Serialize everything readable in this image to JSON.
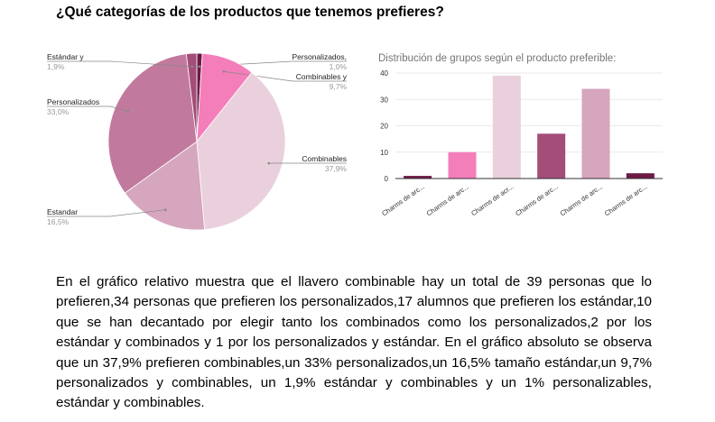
{
  "question": "¿Qué categorías de los productos que tenemos prefieres?",
  "chart_data": [
    {
      "type": "pie",
      "title": "",
      "slices": [
        {
          "label": "Personalizados,",
          "value": 1.0,
          "pct_label": "1,0%",
          "color": "#6d1a45"
        },
        {
          "label": "Combinables y",
          "value": 9.7,
          "pct_label": "9,7%",
          "color": "#f47eba"
        },
        {
          "label": "Combinables",
          "value": 37.9,
          "pct_label": "37,9%",
          "color": "#ead0dc"
        },
        {
          "label": "Estandar",
          "value": 16.5,
          "pct_label": "16,5%",
          "color": "#d6a5be"
        },
        {
          "label": "Personalizados",
          "value": 33.0,
          "pct_label": "33,0%",
          "color": "#c17a9e"
        },
        {
          "label": "Estándar y",
          "value": 1.9,
          "pct_label": "1,9%",
          "color": "#a34d78"
        }
      ]
    },
    {
      "type": "bar",
      "title": "Distribución de grupos según el producto preferible:",
      "categories": [
        "Charms de arc...",
        "Charms de arc...",
        "Charms de acr...",
        "Charms de arc...",
        "Charms de arc...",
        "Charms de arc..."
      ],
      "values": [
        1,
        10,
        39,
        17,
        34,
        2
      ],
      "colors": [
        "#6d1a45",
        "#f47eba",
        "#ead0dc",
        "#a34d78",
        "#d6a5be",
        "#6d1a45"
      ],
      "ylim": [
        0,
        40
      ],
      "yticks": [
        "0",
        "10",
        "20",
        "30",
        "40"
      ],
      "grid": true
    }
  ],
  "paragraph": "En el gráfico relativo muestra que el llavero combinable hay un total de 39 personas que lo prefieren,34 personas que prefieren los personalizados,17 alumnos que prefieren los estándar,10 que se han decantado por elegir tanto los combinados como los personalizados,2 por los estándar y combinados y 1 por los personalizados y estándar. En el gráfico absoluto se observa que un 37,9% prefieren combinables,un 33% personalizados,un 16,5% tamaño estándar,un 9,7% personalizados y combinables, un 1,9% estándar y combinables y un 1% personalizables, estándar y combinables."
}
